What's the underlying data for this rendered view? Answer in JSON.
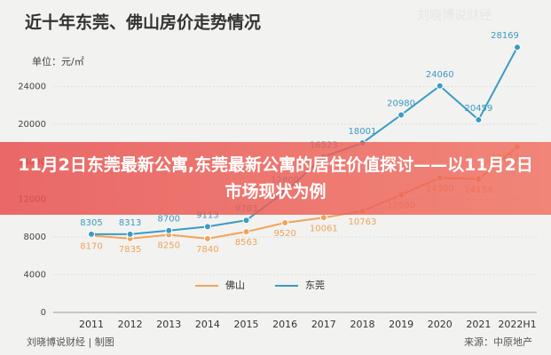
{
  "chart_data": {
    "type": "line",
    "title": "近十年东莞、佛山房价走势情况",
    "unit": "单位：元/㎡",
    "watermark": "刘晓博说财经",
    "footer_left": "刘晓博说财经 | 制图",
    "footer_right": "来源：中原地产",
    "banner": "11月2日东莞最新公寓,东莞最新公寓的居住价值探讨——以11月2日市场现状为例",
    "categories": [
      "2011",
      "2012",
      "2013",
      "2014",
      "2015",
      "2016",
      "2017",
      "2018",
      "2019",
      "2020",
      "2021",
      "2022H1"
    ],
    "series": [
      {
        "name": "佛山",
        "color": "#f0a35a",
        "values": [
          8170,
          7835,
          8250,
          7840,
          8563,
          9520,
          10061,
          10763,
          12500,
          14300,
          14154,
          17573
        ]
      },
      {
        "name": "东莞",
        "color": "#3a9bc4",
        "values": [
          8305,
          8313,
          8700,
          9113,
          9783,
          12800,
          16523,
          18001,
          20980,
          24060,
          20459,
          28169
        ]
      }
    ],
    "ylim": [
      0,
      28000
    ],
    "yticks": [
      0,
      4000,
      8000,
      12000,
      16000,
      20000,
      24000
    ],
    "grid": true
  }
}
